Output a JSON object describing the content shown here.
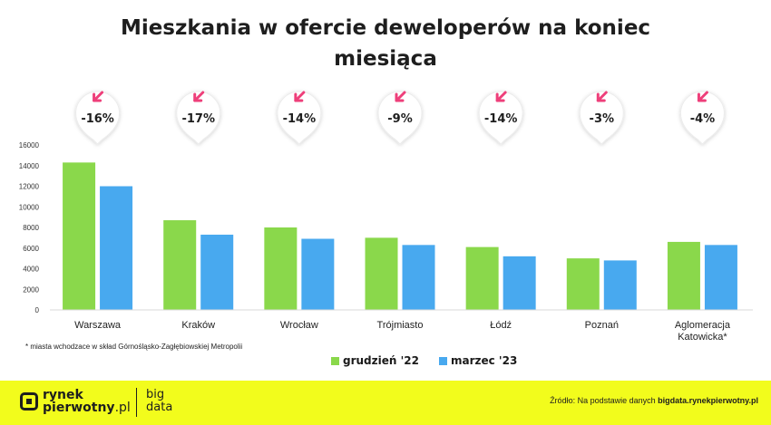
{
  "title_line1": "Mieszkania w ofercie deweloperów na koniec",
  "title_line2": "miesiąca",
  "chart_data": {
    "type": "bar",
    "title": "Mieszkania w ofercie deweloperów na koniec miesiąca",
    "categories": [
      "Warszawa",
      "Kraków",
      "Wrocław",
      "Trójmiasto",
      "Łódź",
      "Poznań",
      [
        "Aglomeracja",
        "Katowicka*"
      ]
    ],
    "series": [
      {
        "name": "grudzień '22",
        "color": "#8ad84b",
        "values": [
          14300,
          8700,
          8000,
          7000,
          6100,
          5000,
          6600
        ]
      },
      {
        "name": "marzec '23",
        "color": "#48a9ef",
        "values": [
          12000,
          7300,
          6900,
          6300,
          5200,
          4800,
          6300
        ]
      }
    ],
    "change_labels": [
      "-16%",
      "-17%",
      "-14%",
      "-9%",
      "-14%",
      "-3%",
      "-4%"
    ],
    "ylim": [
      0,
      16000
    ],
    "yticks": [
      0,
      2000,
      4000,
      6000,
      8000,
      10000,
      12000,
      14000,
      16000
    ],
    "grid": false,
    "legend_position": "bottom-center"
  },
  "arrow_color": "#ee3f7a",
  "footnote": "* miasta wchodzace w skład Górnośląsko-Zagłębiowskiej Metropolii",
  "legend": [
    "grudzień '22",
    "marzec '23"
  ],
  "footer": {
    "logo_line1": "rynek",
    "logo_line2": "pierwotny",
    "logo_tld": ".pl",
    "bigdata_line1": "big",
    "bigdata_line2": "data",
    "source_prefix": "Źródło: Na podstawie danych ",
    "source_link": "bigdata.rynekpierwotny.pl"
  }
}
